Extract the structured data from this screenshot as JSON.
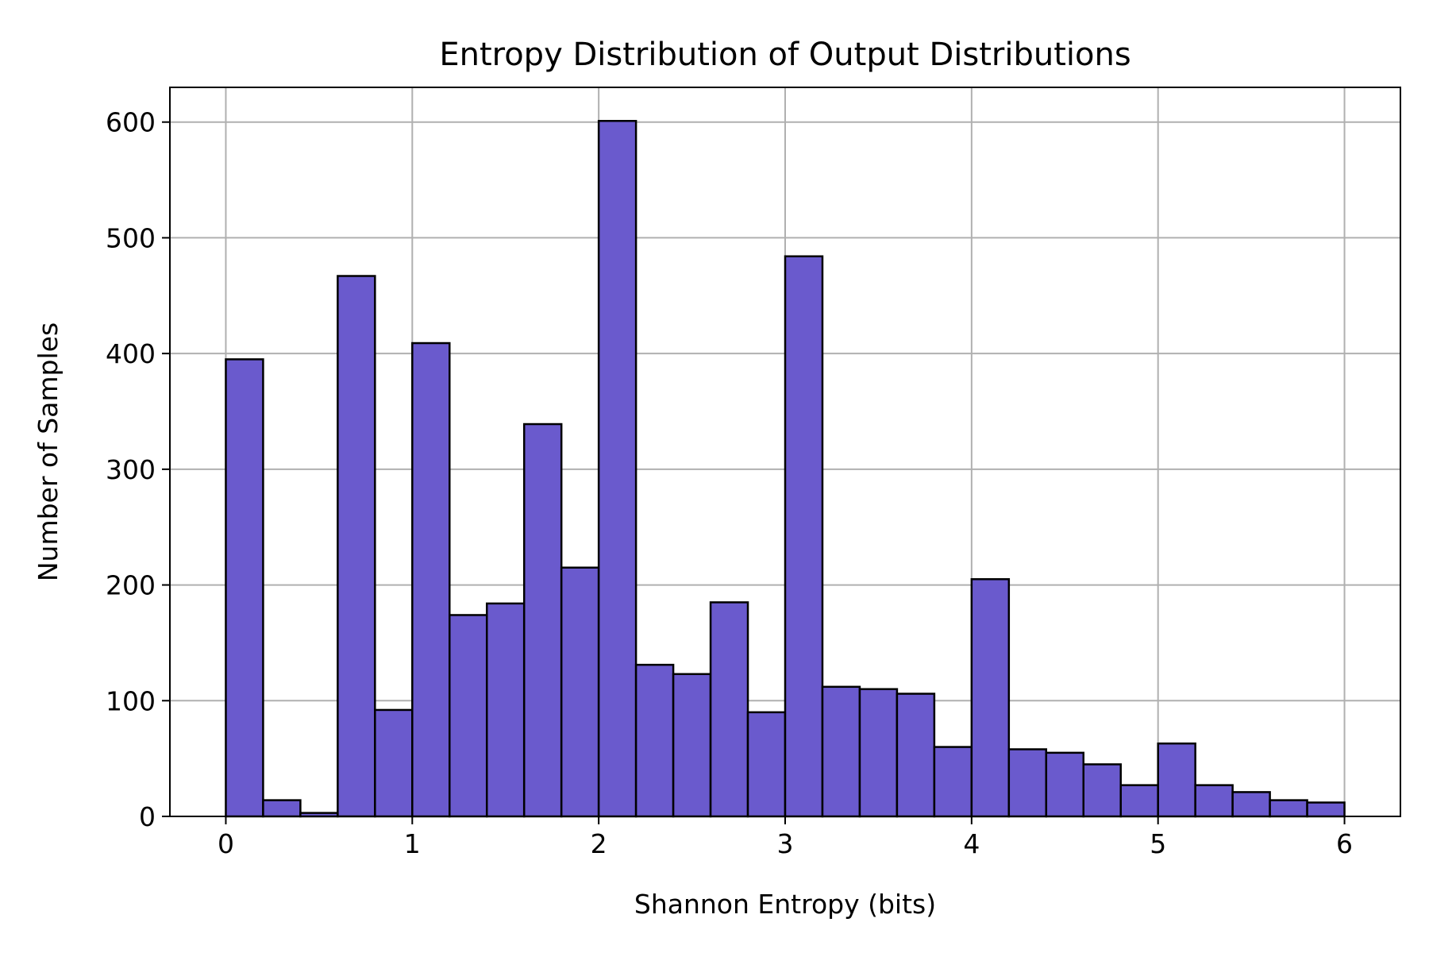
{
  "chart_data": {
    "type": "bar",
    "title": "Entropy Distribution of Output Distributions",
    "xlabel": "Shannon Entropy (bits)",
    "ylabel": "Number of Samples",
    "xlim": [
      -0.3,
      6.3
    ],
    "ylim": [
      0,
      630
    ],
    "xticks": [
      0,
      1,
      2,
      3,
      4,
      5,
      6
    ],
    "yticks": [
      0,
      100,
      200,
      300,
      400,
      500,
      600
    ],
    "grid": true,
    "bar_color": "#6a5acd",
    "edge_color": "#000000",
    "bin_width": 0.2,
    "bin_starts": [
      0.0,
      0.2,
      0.4,
      0.6,
      0.8,
      1.0,
      1.2,
      1.4,
      1.6,
      1.8,
      2.0,
      2.2,
      2.4,
      2.6,
      2.8,
      3.0,
      3.2,
      3.4,
      3.6,
      3.8,
      4.0,
      4.2,
      4.4,
      4.6,
      4.8,
      5.0,
      5.2,
      5.4,
      5.6,
      5.8
    ],
    "values": [
      395,
      14,
      3,
      467,
      92,
      409,
      174,
      184,
      339,
      215,
      601,
      131,
      123,
      185,
      90,
      484,
      112,
      110,
      106,
      60,
      205,
      58,
      55,
      45,
      27,
      63,
      27,
      21,
      14,
      12
    ]
  }
}
